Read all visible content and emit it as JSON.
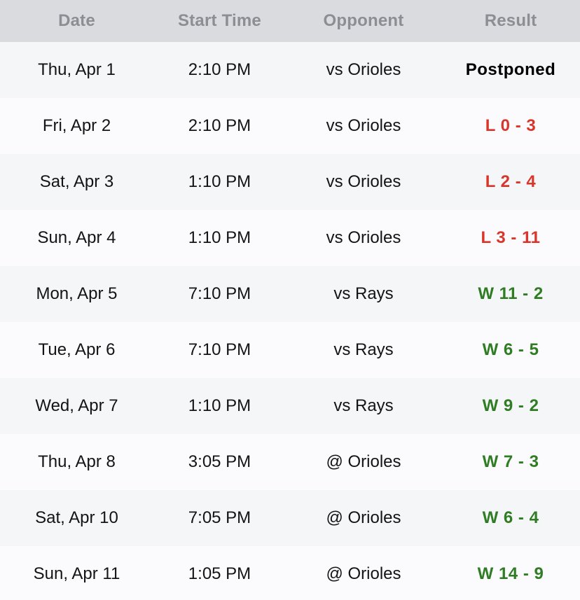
{
  "table": {
    "headers": [
      "Date",
      "Start Time",
      "Opponent",
      "Result"
    ],
    "colors": {
      "loss": "#d9352a",
      "win": "#2f7d22",
      "neutral": "#000000",
      "header_bg": "#d9dbde",
      "header_text": "#8b8e93"
    },
    "rows": [
      {
        "date": "Thu, Apr 1",
        "time": "2:10 PM",
        "opponent": "vs Orioles",
        "result": "Postponed",
        "outcome": "neutral"
      },
      {
        "date": "Fri, Apr 2",
        "time": "2:10 PM",
        "opponent": "vs Orioles",
        "result": "L 0 - 3",
        "outcome": "loss"
      },
      {
        "date": "Sat, Apr 3",
        "time": "1:10 PM",
        "opponent": "vs Orioles",
        "result": "L 2 - 4",
        "outcome": "loss"
      },
      {
        "date": "Sun, Apr 4",
        "time": "1:10 PM",
        "opponent": "vs Orioles",
        "result": "L 3 - 11",
        "outcome": "loss"
      },
      {
        "date": "Mon, Apr 5",
        "time": "7:10 PM",
        "opponent": "vs Rays",
        "result": "W 11 - 2",
        "outcome": "win"
      },
      {
        "date": "Tue, Apr 6",
        "time": "7:10 PM",
        "opponent": "vs Rays",
        "result": "W 6 - 5",
        "outcome": "win"
      },
      {
        "date": "Wed, Apr 7",
        "time": "1:10 PM",
        "opponent": "vs Rays",
        "result": "W 9 - 2",
        "outcome": "win"
      },
      {
        "date": "Thu, Apr 8",
        "time": "3:05 PM",
        "opponent": "@ Orioles",
        "result": "W 7 - 3",
        "outcome": "win"
      },
      {
        "date": "Sat, Apr 10",
        "time": "7:05 PM",
        "opponent": "@ Orioles",
        "result": "W 6 - 4",
        "outcome": "win"
      },
      {
        "date": "Sun, Apr 11",
        "time": "1:05 PM",
        "opponent": "@ Orioles",
        "result": "W 14 - 9",
        "outcome": "win"
      }
    ]
  }
}
